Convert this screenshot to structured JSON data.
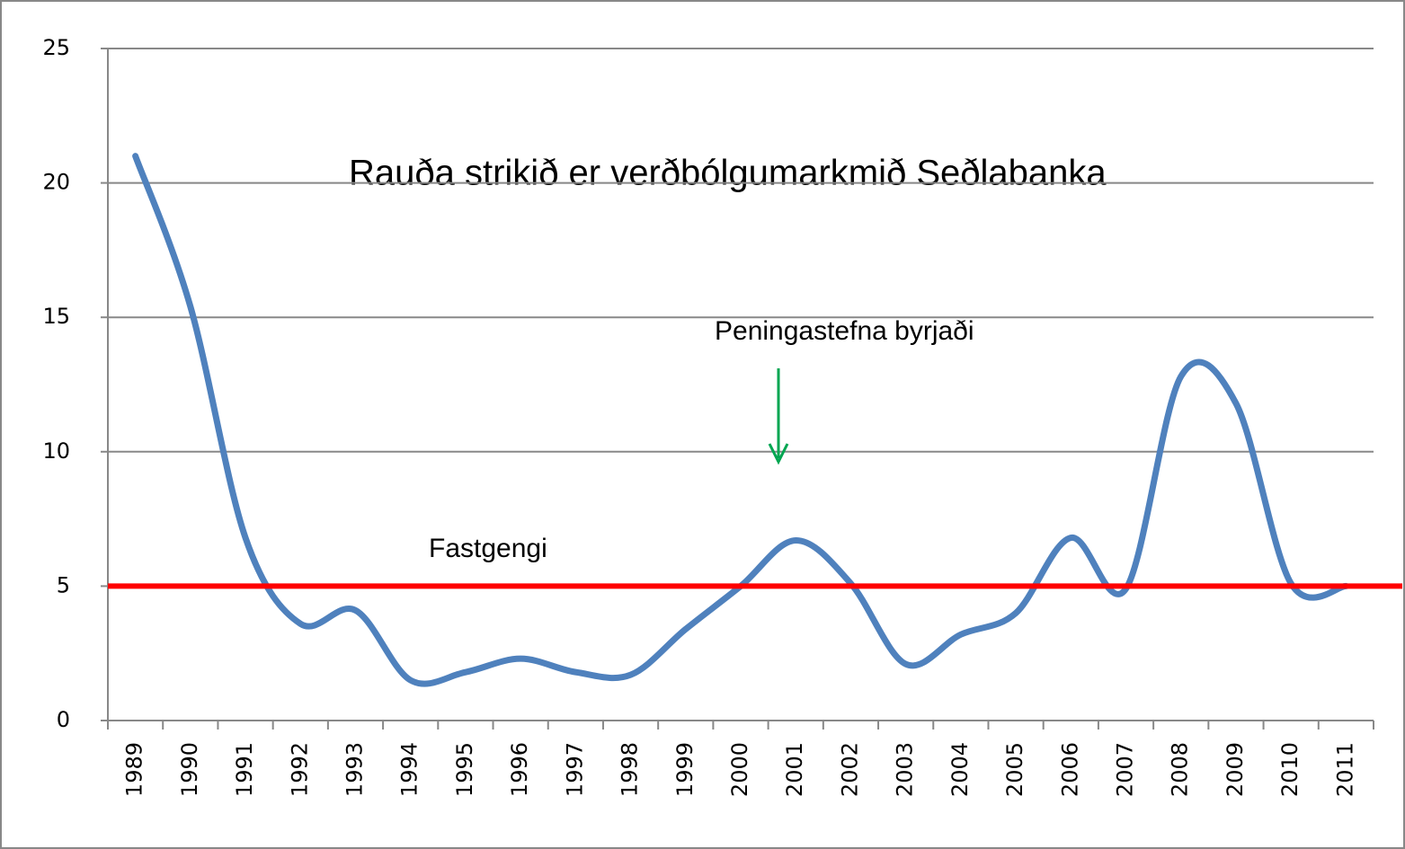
{
  "chart_data": {
    "type": "line",
    "categories": [
      "1989",
      "1990",
      "1991",
      "1992",
      "1993",
      "1994",
      "1995",
      "1996",
      "1997",
      "1998",
      "1999",
      "2000",
      "2001",
      "2002",
      "2003",
      "2004",
      "2005",
      "2006",
      "2007",
      "2008",
      "2009",
      "2010",
      "2011"
    ],
    "series": [
      {
        "color": "#4f81bd",
        "values": [
          21,
          15.4,
          6.8,
          3.6,
          4.1,
          1.5,
          1.8,
          2.3,
          1.8,
          1.7,
          3.4,
          5,
          6.7,
          5.1,
          2.1,
          3.2,
          4,
          6.8,
          4.9,
          12.8,
          11.8,
          5.1,
          5
        ]
      }
    ],
    "reference_line": {
      "value": 5,
      "color": "#ff0000"
    },
    "ylim": [
      0,
      25
    ],
    "yticks": [
      0,
      5,
      10,
      15,
      20,
      25
    ],
    "grid": true,
    "annotations": [
      {
        "text": "Rauða strikið er verðbólgumarkmið Seðlabanka"
      },
      {
        "text": "Peningastefna byrjaði",
        "arrow_color": "#00a651"
      },
      {
        "text": "Fastgengi"
      }
    ]
  }
}
